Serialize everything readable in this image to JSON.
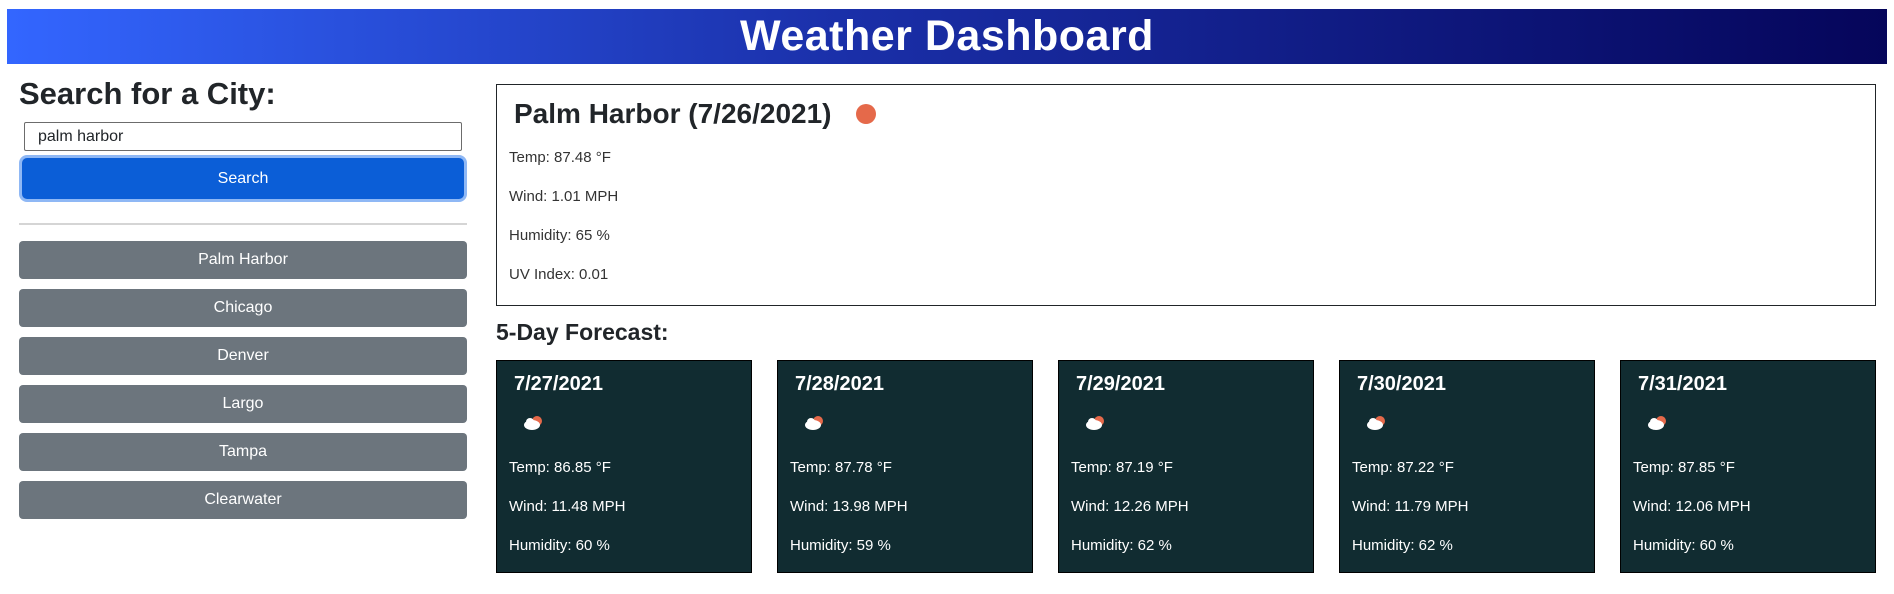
{
  "header": {
    "title": "Weather Dashboard"
  },
  "search": {
    "title": "Search for a City:",
    "input_value": "palm harbor",
    "button_label": "Search"
  },
  "history": [
    "Palm Harbor",
    "Chicago",
    "Denver",
    "Largo",
    "Tampa",
    "Clearwater"
  ],
  "current": {
    "title": "Palm Harbor (7/26/2021)",
    "icon": "sun-icon",
    "temp": "Temp: 87.48 °F",
    "wind": "Wind: 1.01 MPH",
    "humidity": "Humidity: 65 %",
    "uv": "UV Index: 0.01"
  },
  "forecast": {
    "title": "5-Day Forecast:",
    "days": [
      {
        "date": "7/27/2021",
        "icon": "partly-cloudy-icon",
        "temp": "Temp: 86.85 °F",
        "wind": "Wind: 11.48 MPH",
        "humidity": "Humidity: 60 %"
      },
      {
        "date": "7/28/2021",
        "icon": "partly-cloudy-icon",
        "temp": "Temp: 87.78 °F",
        "wind": "Wind: 13.98 MPH",
        "humidity": "Humidity: 59 %"
      },
      {
        "date": "7/29/2021",
        "icon": "partly-cloudy-icon",
        "temp": "Temp: 87.19 °F",
        "wind": "Wind: 12.26 MPH",
        "humidity": "Humidity: 62 %"
      },
      {
        "date": "7/30/2021",
        "icon": "partly-cloudy-icon",
        "temp": "Temp: 87.22 °F",
        "wind": "Wind: 11.79 MPH",
        "humidity": "Humidity: 62 %"
      },
      {
        "date": "7/31/2021",
        "icon": "partly-cloudy-icon",
        "temp": "Temp: 87.85 °F",
        "wind": "Wind: 12.06 MPH",
        "humidity": "Humidity: 60 %"
      }
    ]
  },
  "colors": {
    "header_start": "#3366ff",
    "header_end": "#05055a",
    "search_button": "#0b5ed7",
    "history_button": "#6c757d",
    "card_background": "#112c31",
    "sun": "#e5694a"
  }
}
